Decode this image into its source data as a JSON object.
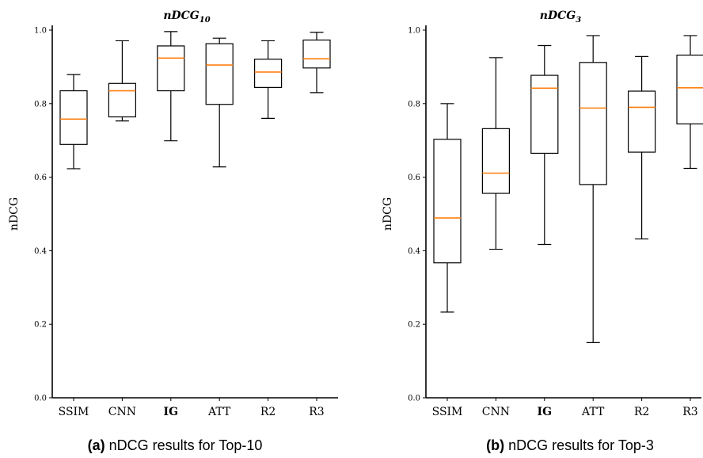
{
  "chart_data": [
    {
      "type": "box",
      "title_main": "nDCG",
      "title_sub": "10",
      "ylabel": "nDCG",
      "ylim": [
        0.0,
        1.0
      ],
      "yticks": [
        0.0,
        0.2,
        0.4,
        0.6,
        0.8,
        1.0
      ],
      "ytick_labels": [
        "0.0",
        "0.2",
        "0.4",
        "0.6",
        "0.8",
        "1.0"
      ],
      "categories": [
        "SSIM",
        "CNN",
        "IG",
        "ATT",
        "R2",
        "R3"
      ],
      "bold_categories": [
        "IG"
      ],
      "boxes": [
        {
          "whislo": 0.623,
          "q1": 0.689,
          "med": 0.758,
          "q3": 0.835,
          "whishi": 0.879
        },
        {
          "whislo": 0.753,
          "q1": 0.764,
          "med": 0.835,
          "q3": 0.855,
          "whishi": 0.971
        },
        {
          "whislo": 0.699,
          "q1": 0.835,
          "med": 0.924,
          "q3": 0.957,
          "whishi": 0.996
        },
        {
          "whislo": 0.628,
          "q1": 0.798,
          "med": 0.905,
          "q3": 0.963,
          "whishi": 0.978
        },
        {
          "whislo": 0.76,
          "q1": 0.844,
          "med": 0.886,
          "q3": 0.921,
          "whishi": 0.971
        },
        {
          "whislo": 0.83,
          "q1": 0.897,
          "med": 0.922,
          "q3": 0.973,
          "whishi": 0.994
        }
      ],
      "caption_prefix": "(a)",
      "caption_text": " nDCG results for Top-10"
    },
    {
      "type": "box",
      "title_main": "nDCG",
      "title_sub": "3",
      "ylabel": "nDCG",
      "ylim": [
        0.0,
        1.0
      ],
      "yticks": [
        0.0,
        0.2,
        0.4,
        0.6,
        0.8,
        1.0
      ],
      "ytick_labels": [
        "0.0",
        "0.2",
        "0.4",
        "0.6",
        "0.8",
        "1.0"
      ],
      "categories": [
        "SSIM",
        "CNN",
        "IG",
        "ATT",
        "R2",
        "R3"
      ],
      "bold_categories": [
        "IG"
      ],
      "boxes": [
        {
          "whislo": 0.233,
          "q1": 0.367,
          "med": 0.489,
          "q3": 0.703,
          "whishi": 0.8
        },
        {
          "whislo": 0.404,
          "q1": 0.556,
          "med": 0.611,
          "q3": 0.732,
          "whishi": 0.925
        },
        {
          "whislo": 0.417,
          "q1": 0.665,
          "med": 0.842,
          "q3": 0.877,
          "whishi": 0.958
        },
        {
          "whislo": 0.15,
          "q1": 0.58,
          "med": 0.788,
          "q3": 0.912,
          "whishi": 0.985
        },
        {
          "whislo": 0.432,
          "q1": 0.668,
          "med": 0.79,
          "q3": 0.834,
          "whishi": 0.928
        },
        {
          "whislo": 0.624,
          "q1": 0.745,
          "med": 0.843,
          "q3": 0.932,
          "whishi": 0.985
        }
      ],
      "caption_prefix": "(b)",
      "caption_text": " nDCG results for Top-3"
    }
  ]
}
